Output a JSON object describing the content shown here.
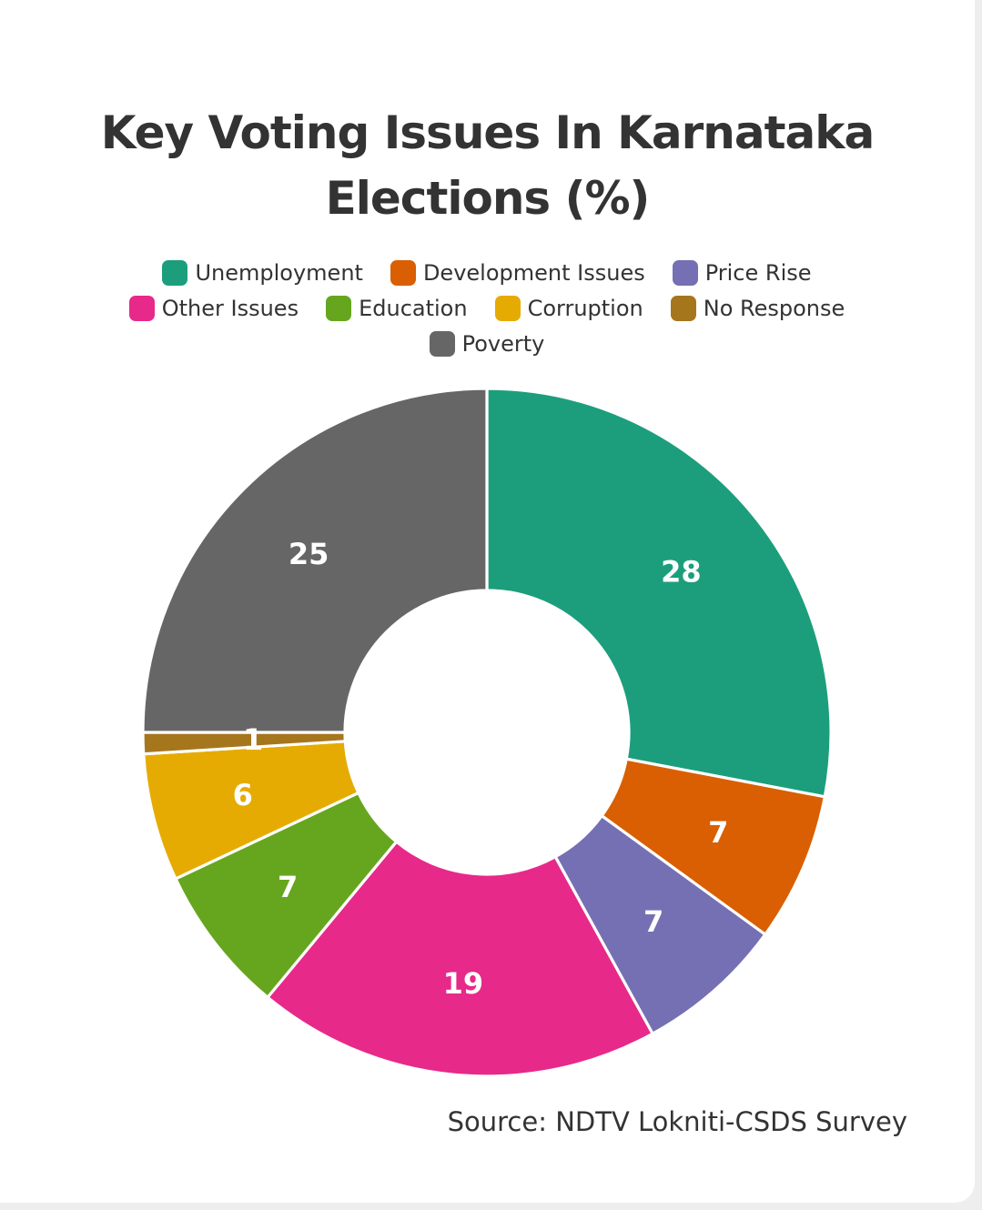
{
  "title_line1": "Key Voting Issues In Karnataka",
  "title_line2": "Elections (%)",
  "source": "Source: NDTV Lokniti-CSDS Survey",
  "chart_data": {
    "type": "pie",
    "variant": "donut",
    "title": "Key Voting Issues In Karnataka Elections (%)",
    "legend_position": "top",
    "slices": [
      {
        "label": "Unemployment",
        "value": 28,
        "color": "#1c9e7c"
      },
      {
        "label": "Development Issues",
        "value": 7,
        "color": "#d95f02"
      },
      {
        "label": "Price Rise",
        "value": 7,
        "color": "#7570b3"
      },
      {
        "label": "Other Issues",
        "value": 19,
        "color": "#e7298a"
      },
      {
        "label": "Education",
        "value": 7,
        "color": "#66a61e"
      },
      {
        "label": "Corruption",
        "value": 6,
        "color": "#e6ab02"
      },
      {
        "label": "No Response",
        "value": 1,
        "color": "#a6761d"
      },
      {
        "label": "Poverty",
        "value": 25,
        "color": "#666666"
      }
    ]
  }
}
